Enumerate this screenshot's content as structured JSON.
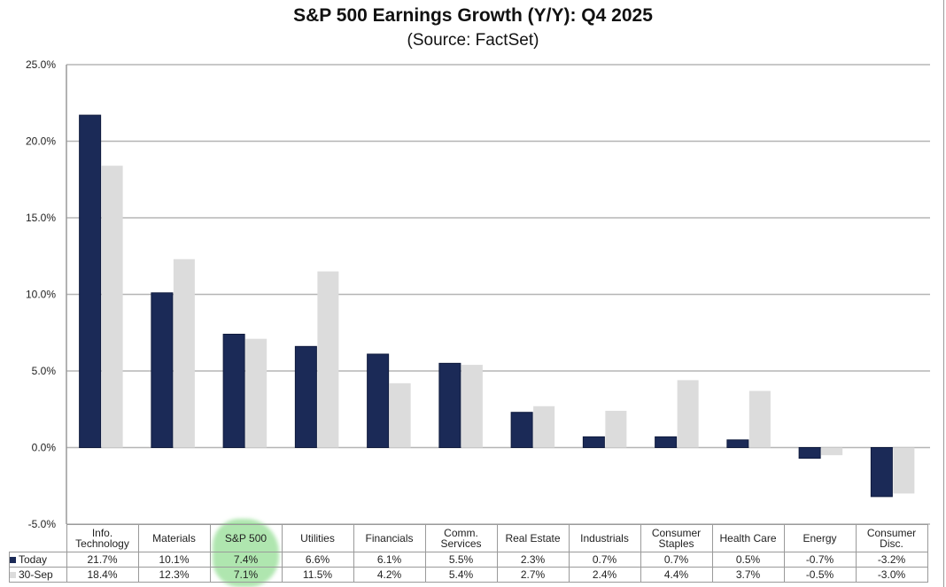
{
  "chart_data": {
    "type": "bar",
    "title": "S&P 500 Earnings Growth (Y/Y): Q4 2025",
    "subtitle": "(Source: FactSet)",
    "xlabel": "",
    "ylabel": "",
    "ylim": [
      -5,
      25
    ],
    "yticks": [
      "25.0%",
      "20.0%",
      "15.0%",
      "10.0%",
      "5.0%",
      "0.0%",
      "-5.0%"
    ],
    "ytick_values": [
      25,
      20,
      15,
      10,
      5,
      0,
      -5
    ],
    "grid": true,
    "legend": "in-table-left",
    "categories": [
      "Info. Technology",
      "Materials",
      "S&P 500",
      "Utilities",
      "Financials",
      "Comm. Services",
      "Real Estate",
      "Industrials",
      "Consumer Staples",
      "Health Care",
      "Energy",
      "Consumer Disc."
    ],
    "series": [
      {
        "name": "Today",
        "color": "#1b2a57",
        "values": [
          21.7,
          10.1,
          7.4,
          6.6,
          6.1,
          5.5,
          2.3,
          0.7,
          0.7,
          0.5,
          -0.7,
          -3.2
        ],
        "labels": [
          "21.7%",
          "10.1%",
          "7.4%",
          "6.6%",
          "6.1%",
          "5.5%",
          "2.3%",
          "0.7%",
          "0.7%",
          "0.5%",
          "-0.7%",
          "-3.2%"
        ]
      },
      {
        "name": "30-Sep",
        "color": "#dcdcdc",
        "values": [
          18.4,
          12.3,
          7.1,
          11.5,
          4.2,
          5.4,
          2.7,
          2.4,
          4.4,
          3.7,
          -0.5,
          -3.0
        ],
        "labels": [
          "18.4%",
          "12.3%",
          "7.1%",
          "11.5%",
          "4.2%",
          "5.4%",
          "2.7%",
          "2.4%",
          "4.4%",
          "3.7%",
          "-0.5%",
          "-3.0%"
        ]
      }
    ],
    "highlighted_category": "S&P 500"
  }
}
